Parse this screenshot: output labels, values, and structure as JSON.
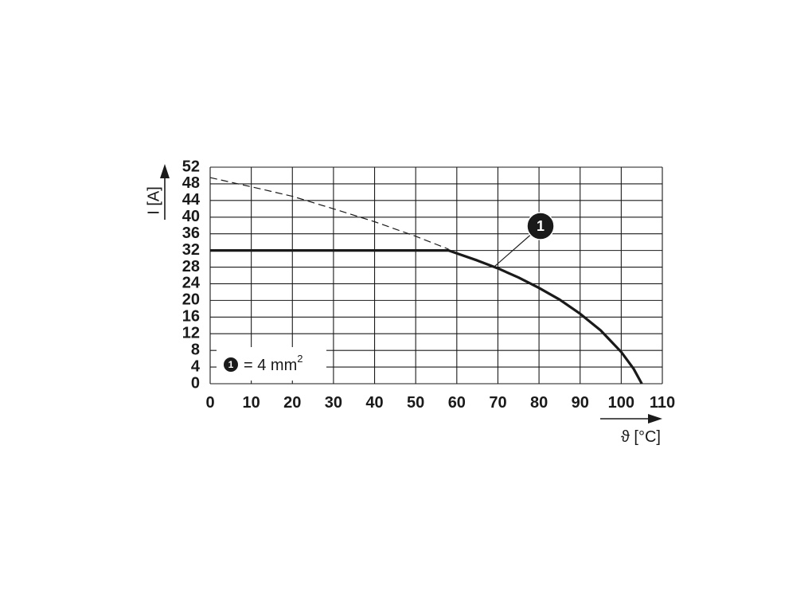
{
  "chart_data": {
    "type": "line",
    "xlabel": "ϑ [°C]",
    "ylabel": "I [A]",
    "xlim": [
      0,
      110
    ],
    "ylim": [
      0,
      52
    ],
    "xticks": [
      0,
      10,
      20,
      30,
      40,
      50,
      60,
      70,
      80,
      90,
      100,
      110
    ],
    "yticks": [
      0,
      4,
      8,
      12,
      16,
      20,
      24,
      28,
      32,
      36,
      40,
      44,
      48,
      52
    ],
    "grid": true,
    "series": [
      {
        "style": "solid",
        "x": [
          0,
          58,
          60,
          65,
          70,
          75,
          80,
          85,
          90,
          95,
          100,
          103,
          105
        ],
        "y": [
          32,
          32,
          31.3,
          29.6,
          27.7,
          25.5,
          23.0,
          20.2,
          16.8,
          12.8,
          7.6,
          3.6,
          0
        ]
      },
      {
        "style": "dashed",
        "x": [
          0,
          10,
          20,
          30,
          40,
          50,
          58
        ],
        "y": [
          49.5,
          47.3,
          45.0,
          42.0,
          38.9,
          35.4,
          32.3
        ]
      }
    ],
    "callout": {
      "number": "1",
      "points_to": {
        "x": 69,
        "y": 28
      }
    },
    "legend": {
      "position": "bottom-left",
      "marker": "1",
      "text": "= 4 mm",
      "superscript": "2"
    }
  }
}
